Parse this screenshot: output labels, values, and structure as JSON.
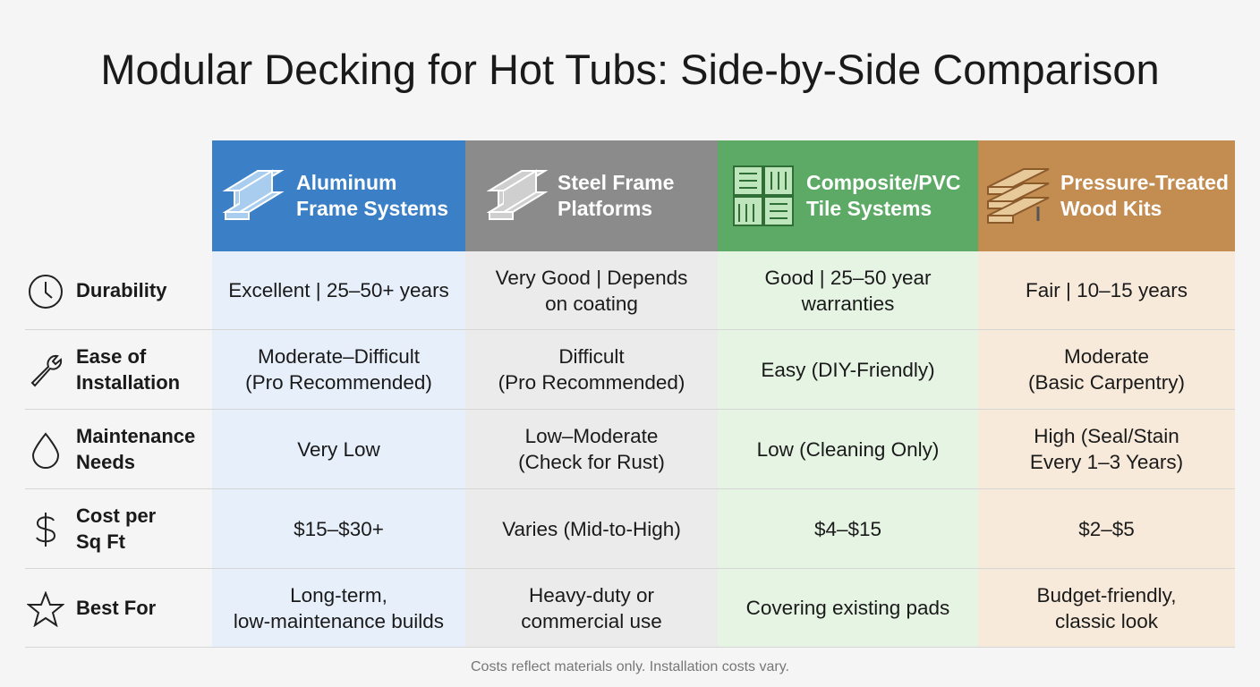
{
  "header": {
    "title": "Modular Decking for Hot Tubs: Side-by-Side Comparison"
  },
  "table": {
    "columns": [
      {
        "lines": [
          "Aluminum",
          "Frame Systems"
        ]
      },
      {
        "lines": [
          "Steel Frame",
          "Platforms"
        ]
      },
      {
        "lines": [
          "Composite/PVC",
          "Tile Systems"
        ]
      },
      {
        "lines": [
          "Pressure-Treated",
          "Wood Kits"
        ]
      }
    ],
    "rows": [
      {
        "label": [
          "Durability"
        ],
        "cells": [
          [
            "Excellent | 25–50+ years"
          ],
          [
            "Very Good | Depends",
            "on coating"
          ],
          [
            "Good | 25–50 year",
            "warranties"
          ],
          [
            "Fair | 10–15 years"
          ]
        ]
      },
      {
        "label": [
          "Ease of",
          "Installation"
        ],
        "cells": [
          [
            "Moderate–Difficult",
            "(Pro Recommended)"
          ],
          [
            "Difficult",
            "(Pro Recommended)"
          ],
          [
            "Easy (DIY-Friendly)"
          ],
          [
            "Moderate",
            "(Basic Carpentry)"
          ]
        ]
      },
      {
        "label": [
          "Maintenance",
          "Needs"
        ],
        "cells": [
          [
            "Very Low"
          ],
          [
            "Low–Moderate",
            "(Check for Rust)"
          ],
          [
            "Low (Cleaning Only)"
          ],
          [
            "High (Seal/Stain",
            "Every 1–3 Years)"
          ]
        ]
      },
      {
        "label": [
          "Cost per",
          "Sq Ft"
        ],
        "cells": [
          [
            "$15–$30+"
          ],
          [
            "Varies (Mid-to-High)"
          ],
          [
            "$4–$15"
          ],
          [
            "$2–$5"
          ]
        ]
      },
      {
        "label": [
          "Best For"
        ],
        "cells": [
          [
            "Long-term,",
            "low-maintenance builds"
          ],
          [
            "Heavy-duty or",
            "commercial use"
          ],
          [
            "Covering existing pads"
          ],
          [
            "Budget-friendly,",
            "classic look"
          ]
        ]
      }
    ]
  },
  "footnote": "Costs reflect materials only. Installation costs vary."
}
